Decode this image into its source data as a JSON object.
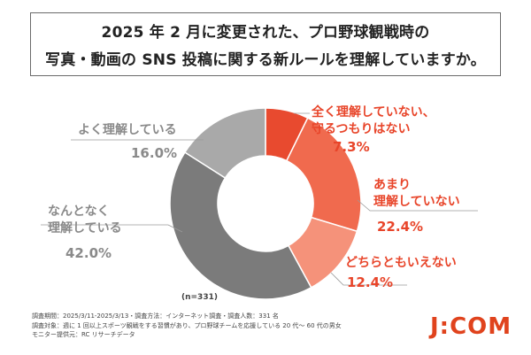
{
  "title": {
    "line1": "2025 年 2 月に変更された、プロ野球観戦時の",
    "line2": "写真・動画の SNS 投稿に関する新ルールを理解していますか。"
  },
  "chart_data": {
    "type": "pie",
    "donut": true,
    "slices": [
      {
        "label_line1": "全く理解していない、",
        "label_line2": "守るつもりはない",
        "value": 7.3,
        "pct_label": "7.3%",
        "color": "#e84a2f"
      },
      {
        "label_line1": "あまり",
        "label_line2": "理解していない",
        "value": 22.4,
        "pct_label": "22.4%",
        "color": "#f06a4e"
      },
      {
        "label_line1": "どちらともいえない",
        "label_line2": "",
        "value": 12.4,
        "pct_label": "12.4%",
        "color": "#f5927a"
      },
      {
        "label_line1": "なんとなく",
        "label_line2": "理解している",
        "value": 42.0,
        "pct_label": "42.0%",
        "color": "#7b7b7b"
      },
      {
        "label_line1": "よく理解している",
        "label_line2": "",
        "value": 16.0,
        "pct_label": "16.0%",
        "color": "#a9a9a9"
      }
    ],
    "sample_size": "(n=331)"
  },
  "footnote": {
    "line1": "調査期間：2025/3/11-2025/3/13・調査方法：インターネット調査・調査人数：331 名",
    "line2": "調査対象：週に 1 回以上スポーツ観戦をする習慣があり、プロ野球チームを応援している 20 代～ 60 代の男女",
    "line3": "モニター提供元：RC リサーチデータ"
  },
  "logo": "J:COM"
}
